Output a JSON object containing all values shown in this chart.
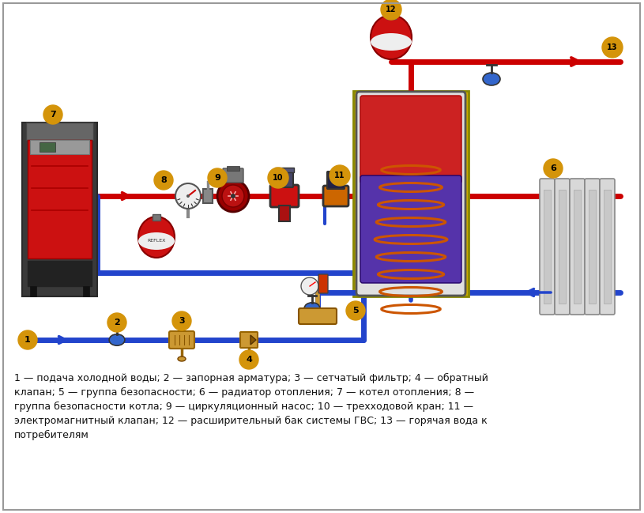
{
  "background_color": "#ffffff",
  "red_pipe_color": "#cc0000",
  "blue_pipe_color": "#2244cc",
  "label_bg_color": "#d4940a",
  "pipe_lw": 5,
  "legend_text_line1": "1 — подача холодной воды; 2 — запорная арматура; 3 — сетчатый фильтр; 4 — обратный",
  "legend_text_line2": "клапан; 5 — группа безопасности; 6 — радиатор отопления; 7 — котел отопления; 8 —",
  "legend_text_line3": "группа безопасности котла; 9 — циркуляционный насос; 10 — трехходовой кран; 11 —",
  "legend_text_line4": "электромагнитный клапан; 12 — расширительный бак системы ГВС; 13 — горячая вода к",
  "legend_text_line5": "потребителям"
}
